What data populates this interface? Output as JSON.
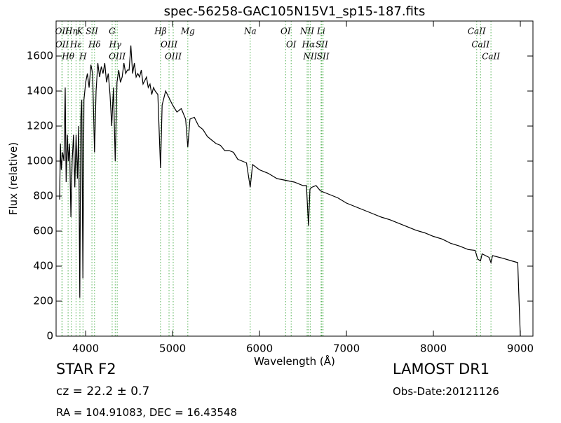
{
  "chart_data": {
    "type": "line",
    "title": "spec-56258-GAC105N15V1_sp15-187.fits",
    "x_label": "Wavelength (Å)",
    "y_label": "Flux (relative)",
    "xlim": [
      3660,
      9145
    ],
    "ylim": [
      0,
      1800
    ],
    "xticks": [
      4000,
      5000,
      6000,
      7000,
      8000,
      9000
    ],
    "yticks": [
      0,
      200,
      400,
      600,
      800,
      1000,
      1200,
      1400,
      1600
    ],
    "color": "#000000",
    "line_color": "#2ca02c",
    "x": [
      3700,
      3710,
      3720,
      3735,
      3750,
      3765,
      3775,
      3790,
      3800,
      3815,
      3830,
      3845,
      3860,
      3875,
      3890,
      3905,
      3920,
      3933,
      3945,
      3955,
      3968,
      3980,
      4000,
      4020,
      4040,
      4060,
      4080,
      4102,
      4120,
      4140,
      4160,
      4180,
      4200,
      4220,
      4240,
      4260,
      4280,
      4300,
      4320,
      4340,
      4360,
      4380,
      4400,
      4420,
      4440,
      4460,
      4480,
      4500,
      4520,
      4540,
      4560,
      4580,
      4600,
      4620,
      4640,
      4660,
      4680,
      4700,
      4720,
      4740,
      4760,
      4780,
      4800,
      4830,
      4861,
      4880,
      4920,
      4960,
      5000,
      5050,
      5100,
      5150,
      5175,
      5200,
      5250,
      5300,
      5350,
      5400,
      5450,
      5500,
      5550,
      5600,
      5650,
      5700,
      5750,
      5800,
      5850,
      5893,
      5920,
      6000,
      6100,
      6200,
      6300,
      6400,
      6500,
      6540,
      6563,
      6580,
      6600,
      6650,
      6700,
      6800,
      6900,
      7000,
      7100,
      7200,
      7300,
      7400,
      7500,
      7600,
      7700,
      7800,
      7900,
      8000,
      8100,
      8200,
      8300,
      8400,
      8480,
      8498,
      8510,
      8542,
      8560,
      8640,
      8662,
      8680,
      8800,
      8900,
      8970,
      8985,
      9000
    ],
    "y": [
      780,
      1100,
      950,
      1050,
      1000,
      1420,
      880,
      1150,
      1000,
      1100,
      680,
      1000,
      1150,
      850,
      1150,
      900,
      1200,
      220,
      1250,
      1350,
      330,
      1350,
      1450,
      1500,
      1420,
      1550,
      1500,
      1050,
      1400,
      1560,
      1480,
      1540,
      1500,
      1560,
      1450,
      1500,
      1380,
      1200,
      1420,
      1000,
      1450,
      1520,
      1450,
      1480,
      1560,
      1500,
      1520,
      1520,
      1660,
      1500,
      1560,
      1480,
      1500,
      1480,
      1520,
      1440,
      1460,
      1480,
      1420,
      1440,
      1380,
      1420,
      1400,
      1380,
      960,
      1320,
      1400,
      1360,
      1320,
      1280,
      1300,
      1240,
      1080,
      1240,
      1250,
      1200,
      1180,
      1140,
      1120,
      1100,
      1090,
      1060,
      1060,
      1050,
      1010,
      1000,
      990,
      850,
      980,
      950,
      930,
      900,
      890,
      880,
      860,
      860,
      630,
      840,
      850,
      860,
      830,
      810,
      790,
      760,
      740,
      720,
      700,
      680,
      665,
      645,
      625,
      605,
      590,
      570,
      555,
      530,
      515,
      495,
      490,
      460,
      440,
      430,
      470,
      450,
      420,
      460,
      445,
      430,
      420,
      200,
      0
    ],
    "lines": [
      {
        "label": "OII",
        "x": 3727
      },
      {
        "label": "OII",
        "x": 3729
      },
      {
        "label": "Hθ",
        "x": 3798
      },
      {
        "label": "Hη",
        "x": 3835
      },
      {
        "label": "Hε",
        "x": 3889
      },
      {
        "label": "K",
        "x": 3934
      },
      {
        "label": "H",
        "x": 3969
      },
      {
        "label": "SII",
        "x": 4072
      },
      {
        "label": "Hδ",
        "x": 4102
      },
      {
        "label": "G",
        "x": 4305
      },
      {
        "label": "Hγ",
        "x": 4340
      },
      {
        "label": "OIII",
        "x": 4363
      },
      {
        "label": "Hβ",
        "x": 4861
      },
      {
        "label": "OIII",
        "x": 4959
      },
      {
        "label": "OIII",
        "x": 5007
      },
      {
        "label": "Mg",
        "x": 5175
      },
      {
        "label": "Na",
        "x": 5893
      },
      {
        "label": "OI",
        "x": 6300
      },
      {
        "label": "OI",
        "x": 6364
      },
      {
        "label": "NII",
        "x": 6548
      },
      {
        "label": "Hα",
        "x": 6563
      },
      {
        "label": "NII",
        "x": 6583
      },
      {
        "label": "Li",
        "x": 6708
      },
      {
        "label": "SII",
        "x": 6716
      },
      {
        "label": "SII",
        "x": 6731
      },
      {
        "label": "CaII",
        "x": 8498
      },
      {
        "label": "CaII",
        "x": 8542
      },
      {
        "label": "CaII",
        "x": 8662
      }
    ],
    "annotations": [
      "STAR   F2",
      "cz = 22.2 ± 0.7",
      "RA = 104.91083, DEC = 16.43548",
      "LAMOST DR1",
      "Obs-Date:20121126"
    ]
  }
}
